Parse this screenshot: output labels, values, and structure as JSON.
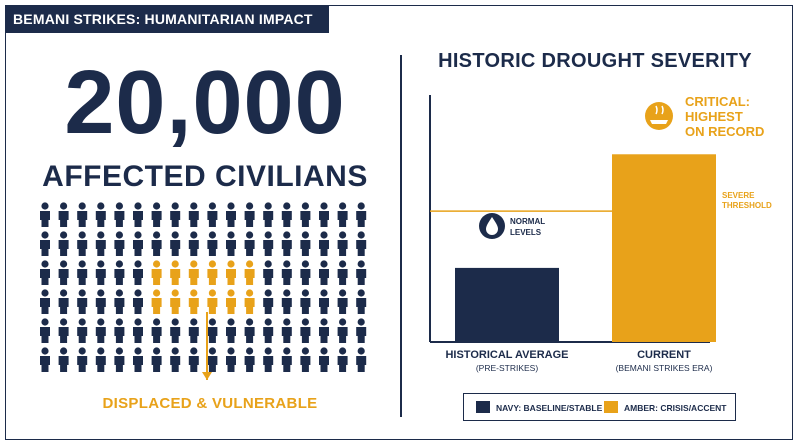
{
  "header": {
    "title": "BEMANI STRIKES: HUMANITARIAN IMPACT"
  },
  "left_panel": {
    "big_number": "20,000",
    "subtitle": "AFFECTED CIVILIANS",
    "people_grid": {
      "rows": 6,
      "cols": 18,
      "highlight_rows": [
        2,
        3
      ],
      "highlight_cols": [
        6,
        11
      ]
    },
    "displaced_label": "DISPLACED & VULNERABLE"
  },
  "colors": {
    "navy": "#1c2b4a",
    "amber": "#e8a21a"
  },
  "chart_data": {
    "type": "bar",
    "title": "HISTORIC DROUGHT SEVERITY",
    "categories": [
      "HISTORICAL AVERAGE",
      "CURRENT"
    ],
    "category_sublabels": [
      "(PRE-STRIKES)",
      "(BEMANI STRIKES ERA)"
    ],
    "values": [
      30,
      76
    ],
    "ylim": [
      0,
      100
    ],
    "threshold": {
      "value": 53,
      "label_line1": "SEVERE",
      "label_line2": "THRESHOLD"
    },
    "annotations": {
      "normal": {
        "line1": "NORMAL",
        "line2": "LEVELS",
        "icon": "water-drop-icon"
      },
      "critical": {
        "line1": "CRITICAL:",
        "line2": "HIGHEST",
        "line3": "ON RECORD",
        "icon": "drought-cracked-earth-icon"
      }
    },
    "legend": [
      {
        "label": "NAVY: BASELINE/STABLE",
        "color": "#1c2b4a"
      },
      {
        "label": "AMBER: CRISIS/ACCENT",
        "color": "#e8a21a"
      }
    ]
  }
}
